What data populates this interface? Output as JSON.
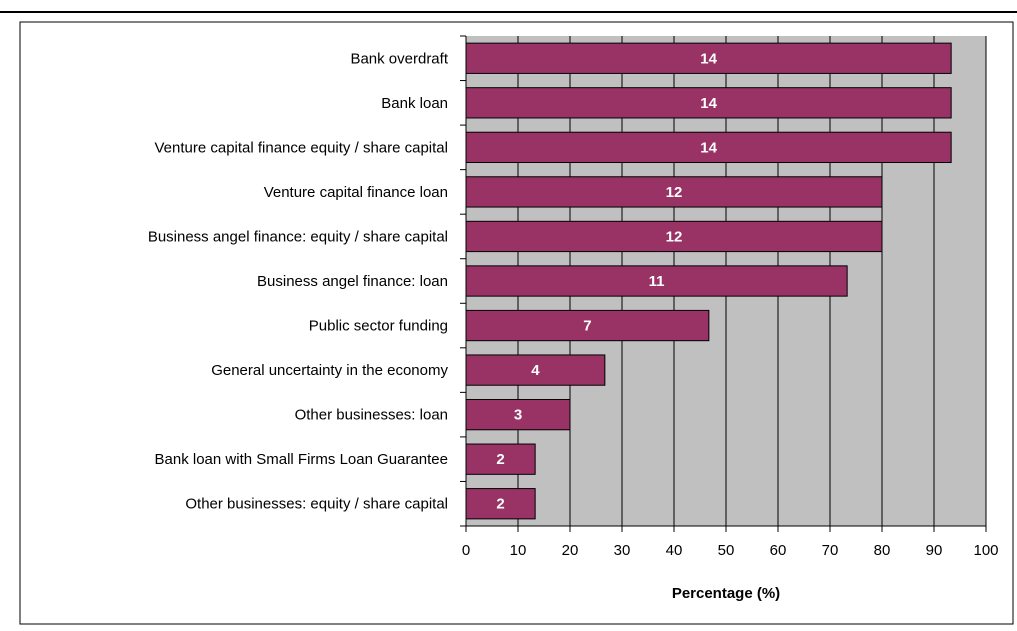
{
  "chart_data": {
    "type": "bar",
    "orientation": "horizontal",
    "categories": [
      "Bank overdraft",
      "Bank loan",
      "Venture capital finance equity / share capital",
      "Venture capital finance loan",
      "Business angel finance: equity / share capital",
      "Business angel finance: loan",
      "Public sector funding",
      "General uncertainty in the economy",
      "Other businesses: loan",
      "Bank loan with Small Firms Loan Guarantee",
      "Other businesses: equity / share capital"
    ],
    "values": [
      93.3,
      93.3,
      93.3,
      80,
      80,
      73.3,
      46.7,
      26.7,
      20,
      13.3,
      13.3
    ],
    "data_labels": [
      "14",
      "14",
      "14",
      "12",
      "12",
      "11",
      "7",
      "4",
      "3",
      "2",
      "2"
    ],
    "xlabel": "Percentage (%)",
    "ylabel": "",
    "xlim": [
      0,
      100
    ],
    "x_ticks": [
      "0",
      "10",
      "20",
      "30",
      "40",
      "50",
      "60",
      "70",
      "80",
      "90",
      "100"
    ],
    "grid": "vertical",
    "legend": "none",
    "colors": {
      "bar_fill": "#993366",
      "bar_stroke": "#000000",
      "plot_background": "#c0c0c0",
      "gridline": "#000000",
      "data_label": "#ffffff",
      "text": "#000000"
    }
  }
}
